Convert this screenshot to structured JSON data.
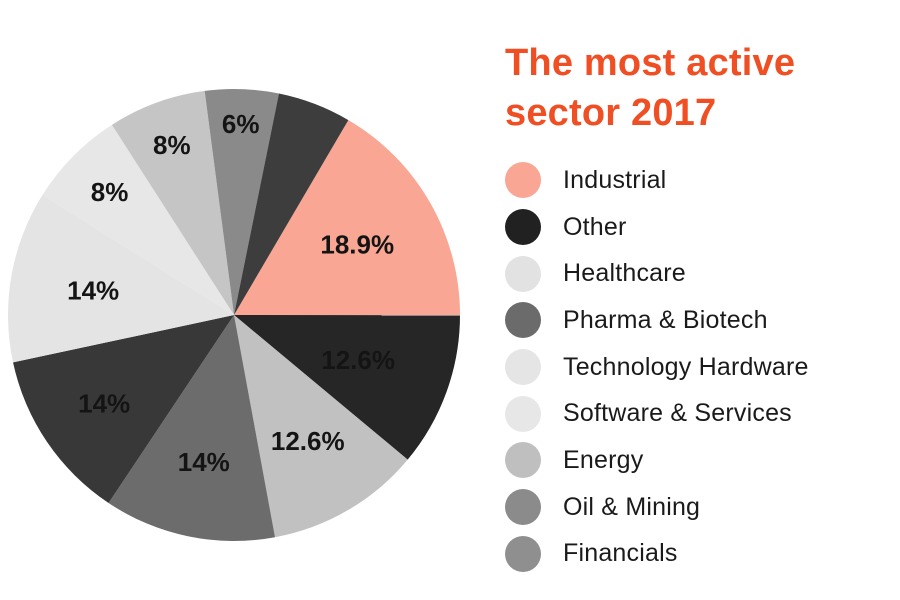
{
  "background_color": "#FFFFFF",
  "title": {
    "text": "The most active sector 2017",
    "color": "#F04E23"
  },
  "chart_data": {
    "type": "pie",
    "title": "The most active sector 2017",
    "direction": "clockwise",
    "start_angle_deg_from_east": 300.4,
    "percent_label_color": "#141414",
    "slices": [
      {
        "label": "18.9%",
        "value": 18.9,
        "color": "#F9A694",
        "label_r": 142
      },
      {
        "label": "12.6%",
        "value": 12.6,
        "color": "#262626",
        "label_r": 132
      },
      {
        "label": "12.6%",
        "value": 12.6,
        "color": "#C1C1C1",
        "label_r": 146
      },
      {
        "label": "14%",
        "value": 14,
        "color": "#6C6C6C",
        "label_r": 150
      },
      {
        "label": "14%",
        "value": 14,
        "color": "#383838",
        "label_r": 157
      },
      {
        "label": "14%",
        "value": 14,
        "color": "#E4E4E4",
        "label_r": 143
      },
      {
        "label": "8%",
        "value": 8,
        "color": "#E7E7E7",
        "label_r": 175
      },
      {
        "label": "8%",
        "value": 8,
        "color": "#C5C5C5",
        "label_r": 181
      },
      {
        "label": "6%",
        "value": 6,
        "color": "#8A8A8A",
        "label_r": 191
      },
      {
        "label": "",
        "value": 6,
        "color": "#3D3D3D",
        "label_r": 0
      }
    ],
    "legend_position": "right",
    "legend": [
      {
        "label": "Industrial",
        "color": "#F9A694"
      },
      {
        "label": "Other",
        "color": "#212121"
      },
      {
        "label": "Healthcare",
        "color": "#E2E2E2"
      },
      {
        "label": "Pharma & Biotech",
        "color": "#6B6B6B"
      },
      {
        "label": "Technology Hardware",
        "color": "#E5E5E5"
      },
      {
        "label": "Software & Services",
        "color": "#E7E7E7"
      },
      {
        "label": "Energy",
        "color": "#BFBFBF"
      },
      {
        "label": "Oil & Mining",
        "color": "#8B8B8B"
      },
      {
        "label": "Financials",
        "color": "#8F8F8F"
      }
    ]
  }
}
